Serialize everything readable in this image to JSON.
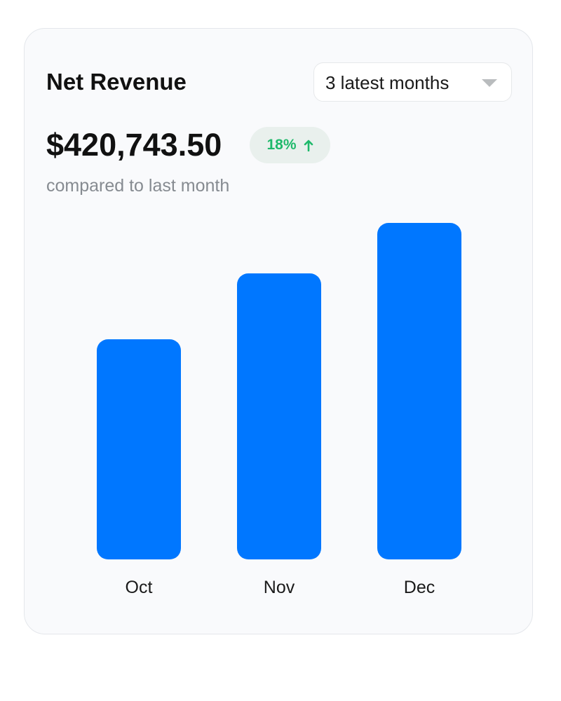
{
  "header": {
    "title": "Net Revenue",
    "period_select": "3 latest months"
  },
  "summary": {
    "amount": "$420,743.50",
    "change": "18%",
    "change_icon": "arrow-up-icon",
    "comparison": "compared to last month"
  },
  "colors": {
    "bar": "#0077ff",
    "positive": "#1fb96b"
  },
  "chart_data": {
    "type": "bar",
    "categories": [
      "Oct",
      "Nov",
      "Dec"
    ],
    "values": [
      0.654,
      0.85,
      1.0
    ],
    "xlabel": "",
    "ylabel": "",
    "grid": false
  }
}
